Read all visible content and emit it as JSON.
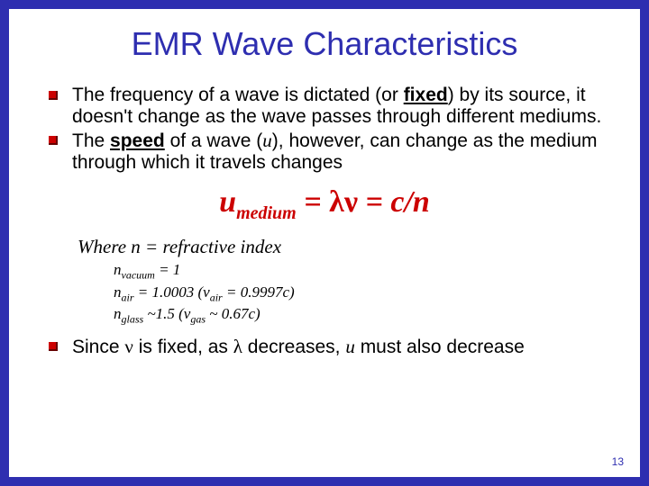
{
  "colors": {
    "frame_bg": "#2e2eb0",
    "slide_bg": "#ffffff",
    "title_color": "#2e2eb0",
    "body_color": "#000000",
    "equation_color": "#cc0000",
    "bullet_fill": "#cc0000",
    "bullet_shadow": "#660000",
    "pagenum_color": "#2e2eb0"
  },
  "typography": {
    "title_family": "Arial",
    "title_size_pt": 27,
    "body_family": "Arial",
    "body_size_pt": 16,
    "equation_family": "Times New Roman",
    "equation_size_pt": 26,
    "where_size_pt": 16,
    "nlines_size_pt": 13,
    "pagenum_size_pt": 9
  },
  "title": "EMR Wave Characteristics",
  "bullets": {
    "b1_pre": "The frequency of a wave is dictated (or ",
    "b1_fixed": "fixed",
    "b1_post": ") by its source, it doesn't change as the wave passes through different mediums.",
    "b2_pre": "The ",
    "b2_speed": "speed",
    "b2_mid": " of a wave (",
    "b2_u": "u",
    "b2_post": "), however, can change as the medium through which it travels changes",
    "b3_pre": "Since ",
    "b3_nu": "ν",
    "b3_mid1": " is fixed, as ",
    "b3_lambda": "λ",
    "b3_mid2": " decreases, ",
    "b3_u": "u",
    "b3_post": " must also decrease"
  },
  "equation": {
    "u": "u",
    "sub": "medium",
    "eq1": " = ",
    "lambda": "λ",
    "nu": "ν",
    "eq2": " = ",
    "cn": "c/n"
  },
  "where": "Where n = refractive index",
  "nlines": {
    "l1_a": "n",
    "l1_sub": "vacuum",
    "l1_b": " = 1",
    "l2_a": "n",
    "l2_sub": "air",
    "l2_b": " = 1.0003 (v",
    "l2_sub2": "air",
    "l2_c": " = 0.9997c)",
    "l3_a": "n",
    "l3_sub": "glass",
    "l3_b": " ~1.5 (v",
    "l3_sub2": "gas",
    "l3_c": " ~ 0.67c)"
  },
  "pagenum": "13"
}
